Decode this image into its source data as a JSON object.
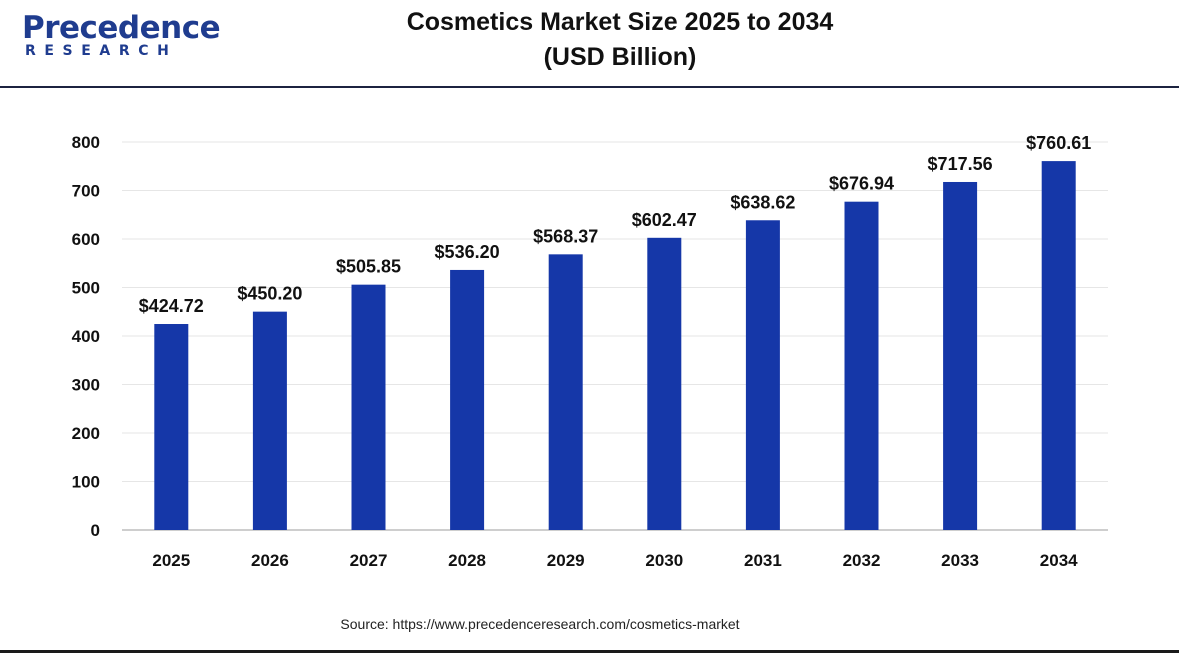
{
  "logo": {
    "word": "Precedence",
    "sub": "RESEARCH"
  },
  "header": {
    "title_line1": "Cosmetics Market Size 2025 to 2034",
    "title_line2": "(USD Billion)"
  },
  "source": "Source: https://www.precedenceresearch.com/cosmetics-market",
  "colors": {
    "bar": "#1537a8",
    "grid": "#e6e6e6",
    "axis": "#bdbdbd",
    "brand": "#1f3c8f"
  },
  "chart_data": {
    "type": "bar",
    "title": "Cosmetics Market Size 2025 to 2034 (USD Billion)",
    "xlabel": "",
    "ylabel": "",
    "categories": [
      "2025",
      "2026",
      "2027",
      "2028",
      "2029",
      "2030",
      "2031",
      "2032",
      "2033",
      "2034"
    ],
    "values": [
      424.72,
      450.2,
      505.85,
      536.2,
      568.37,
      602.47,
      638.62,
      676.94,
      717.56,
      760.61
    ],
    "value_labels": [
      "$424.72",
      "$450.20",
      "$505.85",
      "$536.20",
      "$568.37",
      "$602.47",
      "$638.62",
      "$676.94",
      "$717.56",
      "$760.61"
    ],
    "yticks": [
      0,
      100,
      200,
      300,
      400,
      500,
      600,
      700,
      800
    ],
    "ylim": [
      0,
      800
    ],
    "grid": true,
    "legend": "none"
  }
}
